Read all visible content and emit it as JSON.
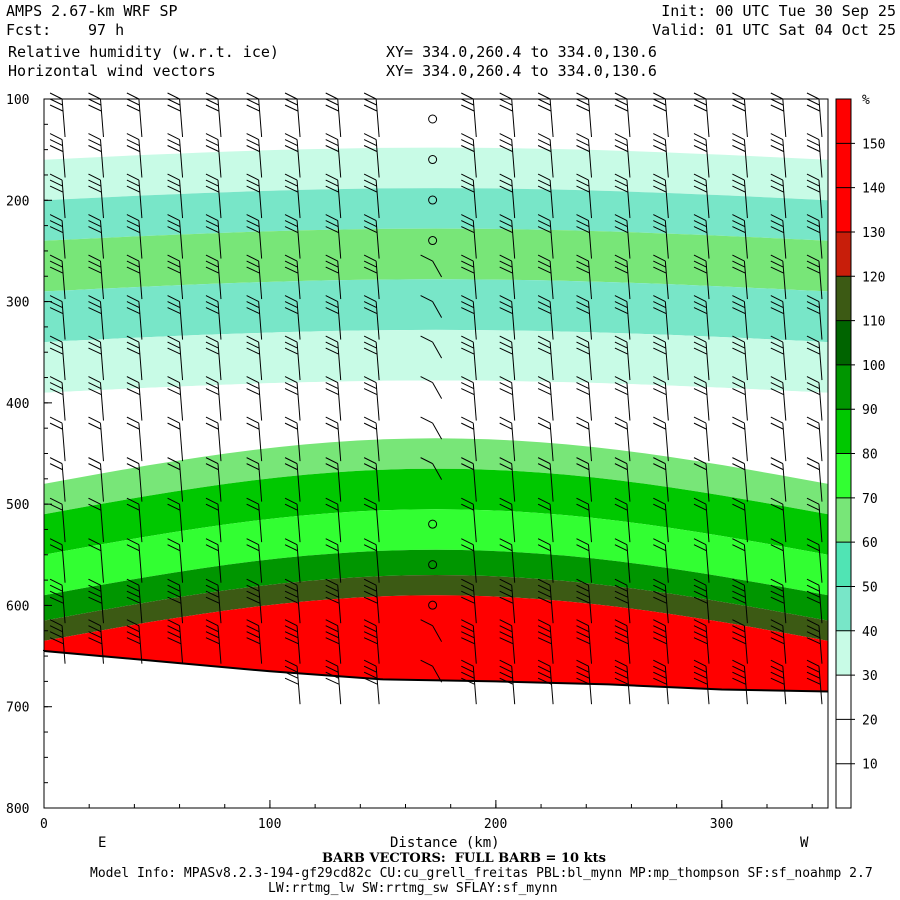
{
  "header": {
    "title": "AMPS 2.67-km WRF SP",
    "fcst_label": "Fcst:",
    "fcst_value": "97 h",
    "field1": "Relative humidity (w.r.t. ice)",
    "field2": "Horizontal wind vectors",
    "init": "Init: 00 UTC Tue 30 Sep 25",
    "valid": "Valid: 01 UTC Sat 04 Oct 25",
    "xy1": "XY= 334.0,260.4 to 334.0,130.6",
    "xy2": "XY= 334.0,260.4 to 334.0,130.6"
  },
  "footer": {
    "barb_note": "BARB VECTORS:  FULL BARB = 10 kts",
    "model_info": "Model Info: MPASv8.2.3-194-gf29cd82c CU:cu_grell_freitas PBL:bl_mynn MP:mp_thompson SF:sf_noahmp 2.7",
    "model_info2": "LW:rrtmg_lw SW:rrtmg_sw SFLAY:sf_mynn"
  },
  "chart_data": {
    "type": "heatmap",
    "xlabel": "Distance (km)",
    "x_end_labels": [
      "E",
      "W"
    ],
    "xlim": [
      0,
      347
    ],
    "xticks": [
      0,
      100,
      200,
      300
    ],
    "ylim": [
      100,
      800
    ],
    "yticks": [
      100,
      200,
      300,
      400,
      500,
      600,
      700,
      800
    ],
    "y_inverted": true,
    "colorbar": {
      "unit": "%",
      "labels": [
        10,
        20,
        30,
        40,
        50,
        60,
        70,
        80,
        90,
        100,
        110,
        120,
        130,
        140,
        150
      ],
      "bins": [
        {
          "min": 0,
          "max": 30,
          "color": "#ffffff"
        },
        {
          "min": 30,
          "max": 40,
          "color": "#c8fbe6"
        },
        {
          "min": 40,
          "max": 50,
          "color": "#78e6c8"
        },
        {
          "min": 50,
          "max": 60,
          "color": "#50e4b4"
        },
        {
          "min": 60,
          "max": 70,
          "color": "#78e678"
        },
        {
          "min": 70,
          "max": 80,
          "color": "#32ff32"
        },
        {
          "min": 80,
          "max": 90,
          "color": "#00c800"
        },
        {
          "min": 90,
          "max": 100,
          "color": "#009600"
        },
        {
          "min": 100,
          "max": 110,
          "color": "#006400"
        },
        {
          "min": 110,
          "max": 120,
          "color": "#3c5a14"
        },
        {
          "min": 120,
          "max": 130,
          "color": "#c81e0a"
        },
        {
          "min": 130,
          "max": 160,
          "color": "#ff0000"
        }
      ]
    },
    "rh_layers": [
      {
        "top": 100,
        "bottom": 160,
        "rh": 20
      },
      {
        "top": 160,
        "bottom": 200,
        "rh": 35
      },
      {
        "top": 200,
        "bottom": 240,
        "rh": 45
      },
      {
        "top": 240,
        "bottom": 290,
        "rh": 65
      },
      {
        "top": 290,
        "bottom": 340,
        "rh": 45
      },
      {
        "top": 340,
        "bottom": 390,
        "rh": 35
      },
      {
        "top": 390,
        "bottom": 450,
        "rh": 20
      },
      {
        "top": 450,
        "bottom": 480,
        "rh": 65
      },
      {
        "top": 480,
        "bottom": 520,
        "rh": 85
      },
      {
        "top": 520,
        "bottom": 560,
        "rh": 75
      },
      {
        "top": 560,
        "bottom": 585,
        "rh": 95
      },
      {
        "top": 585,
        "bottom": 605,
        "rh": 115
      },
      {
        "top": 605,
        "bottom": 690,
        "rh": 140
      }
    ],
    "terrain_pressure": [
      {
        "x": 0,
        "p": 645
      },
      {
        "x": 50,
        "p": 655
      },
      {
        "x": 100,
        "p": 665
      },
      {
        "x": 150,
        "p": 673
      },
      {
        "x": 200,
        "p": 675
      },
      {
        "x": 250,
        "p": 678
      },
      {
        "x": 300,
        "p": 683
      },
      {
        "x": 347,
        "p": 685
      }
    ],
    "barb_columns_x": [
      8,
      25,
      42,
      60,
      77,
      95,
      112,
      130,
      147,
      172,
      190,
      207,
      224,
      241,
      258,
      275,
      293,
      310,
      327,
      343
    ],
    "barb_levels": [
      100,
      140,
      180,
      220,
      260,
      300,
      340,
      380,
      420,
      460,
      500,
      540,
      580,
      620,
      660
    ]
  }
}
